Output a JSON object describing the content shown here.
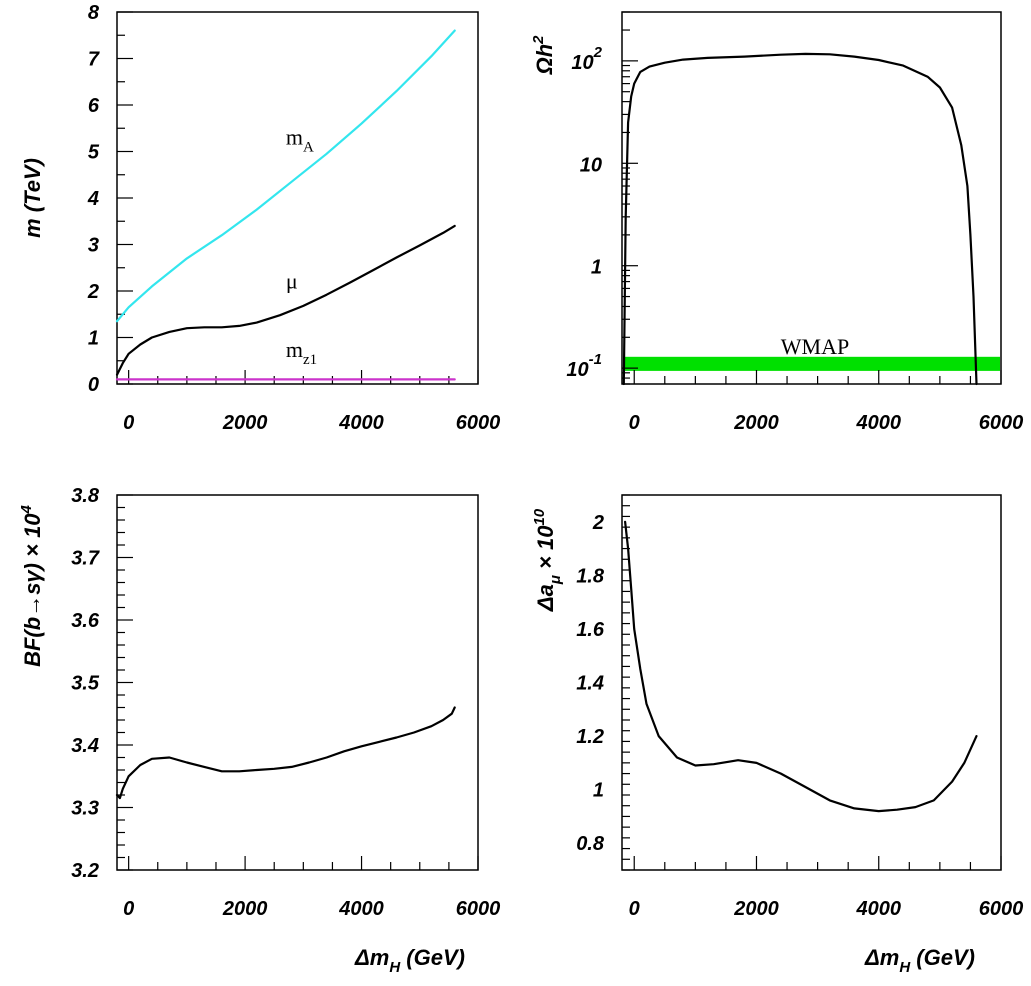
{
  "colors": {
    "mA": "#33e6ee",
    "mu": "#000000",
    "mz1": "#cc33cc",
    "omega": "#000000",
    "wmap_band": "#00e000",
    "bsg": "#000000",
    "amu": "#000000"
  },
  "chart_data": [
    {
      "type": "line",
      "id": "masses",
      "ylabel": "m (TeV)",
      "xlabel": "",
      "xlim": [
        -200,
        6000
      ],
      "ylim": [
        0,
        8
      ],
      "x_ticks": [
        0,
        2000,
        4000,
        6000
      ],
      "x_tick_labels": [
        "0",
        "2000",
        "4000",
        "6000"
      ],
      "y_ticks": [
        0,
        1,
        2,
        3,
        4,
        5,
        6,
        7,
        8
      ],
      "y_tick_labels": [
        "0",
        "1",
        "2",
        "3",
        "4",
        "5",
        "6",
        "7",
        "8"
      ],
      "series": [
        {
          "name": "m_A",
          "label_main": "m",
          "label_sub": "A",
          "label_at": [
            2700,
            5.15
          ],
          "x": [
            -200,
            0,
            400,
            1000,
            1600,
            2200,
            2800,
            3400,
            4000,
            4600,
            5200,
            5600
          ],
          "values": [
            1.35,
            1.65,
            2.1,
            2.7,
            3.2,
            3.75,
            4.35,
            4.95,
            5.6,
            6.3,
            7.05,
            7.6
          ]
        },
        {
          "name": "mu",
          "label_main": "μ",
          "label_sub": "",
          "label_at": [
            2700,
            2.05
          ],
          "x": [
            -200,
            -100,
            0,
            200,
            400,
            700,
            1000,
            1300,
            1600,
            1900,
            2200,
            2600,
            3000,
            3400,
            3800,
            4200,
            4600,
            5000,
            5400,
            5600
          ],
          "values": [
            0.2,
            0.45,
            0.65,
            0.85,
            1.0,
            1.12,
            1.2,
            1.22,
            1.22,
            1.25,
            1.32,
            1.48,
            1.68,
            1.92,
            2.18,
            2.45,
            2.72,
            2.98,
            3.25,
            3.4
          ]
        },
        {
          "name": "m_z1",
          "label_main": "m",
          "label_sub": "z1",
          "label_at": [
            2700,
            0.58
          ],
          "x": [
            -200,
            5600
          ],
          "values": [
            0.1,
            0.1
          ]
        }
      ]
    },
    {
      "type": "line",
      "id": "relic",
      "ylabel": "Ωh²",
      "ylabel_main": "Ωh",
      "ylabel_sup": "2",
      "xlabel": "",
      "yscale": "log",
      "xlim": [
        -200,
        6000
      ],
      "ylim": [
        0.07,
        300
      ],
      "x_ticks": [
        0,
        2000,
        4000,
        6000
      ],
      "x_tick_labels": [
        "0",
        "2000",
        "4000",
        "6000"
      ],
      "y_ticks": [
        0.1,
        1,
        10,
        100
      ],
      "y_tick_labels": [
        {
          "main": "10",
          "sup": "-1"
        },
        {
          "main": "1",
          "sup": ""
        },
        {
          "main": "10",
          "sup": ""
        },
        {
          "main": "10",
          "sup": "2"
        }
      ],
      "band": {
        "name": "WMAP",
        "ymin": 0.094,
        "ymax": 0.129
      },
      "series": [
        {
          "name": "Omega_h2",
          "x": [
            -170,
            -140,
            -100,
            -50,
            0,
            100,
            250,
            500,
            800,
            1200,
            1800,
            2400,
            2800,
            3200,
            3600,
            4000,
            4400,
            4800,
            5000,
            5200,
            5350,
            5450,
            5500,
            5550,
            5600
          ],
          "values": [
            0.07,
            3,
            25,
            45,
            60,
            78,
            88,
            96,
            103,
            107,
            110,
            115,
            117,
            116,
            110,
            102,
            90,
            70,
            55,
            35,
            15,
            6,
            2,
            0.5,
            0.07
          ]
        }
      ]
    },
    {
      "type": "line",
      "id": "bsg",
      "ylabel": "BF(b→sγ)×10⁴",
      "ylabel_main": "BF(b→sγ) × 10",
      "ylabel_sup": "4",
      "xlabel": "Δm_H (GeV)",
      "xlabel_main": "Δm",
      "xlabel_sub": "H",
      "xlabel_rest": " (GeV)",
      "xlim": [
        -200,
        6000
      ],
      "ylim": [
        3.2,
        3.8
      ],
      "x_ticks": [
        0,
        2000,
        4000,
        6000
      ],
      "x_tick_labels": [
        "0",
        "2000",
        "4000",
        "6000"
      ],
      "y_ticks": [
        3.2,
        3.3,
        3.4,
        3.5,
        3.6,
        3.7,
        3.8
      ],
      "y_tick_labels": [
        "3.2",
        "3.3",
        "3.4",
        "3.5",
        "3.6",
        "3.7",
        "3.8"
      ],
      "series": [
        {
          "name": "BF_bsg",
          "x": [
            -200,
            -150,
            -100,
            0,
            200,
            400,
            700,
            1000,
            1300,
            1600,
            1900,
            2200,
            2500,
            2800,
            3100,
            3400,
            3700,
            4000,
            4300,
            4600,
            4900,
            5200,
            5400,
            5550,
            5600
          ],
          "values": [
            3.32,
            3.315,
            3.33,
            3.35,
            3.368,
            3.378,
            3.38,
            3.372,
            3.365,
            3.358,
            3.358,
            3.36,
            3.362,
            3.365,
            3.372,
            3.38,
            3.39,
            3.398,
            3.405,
            3.412,
            3.42,
            3.43,
            3.44,
            3.45,
            3.46
          ]
        }
      ]
    },
    {
      "type": "line",
      "id": "amu",
      "ylabel": "Δa_μ×10¹⁰",
      "ylabel_main": "Δa",
      "ylabel_sub": "μ",
      "ylabel_rest": " × 10",
      "ylabel_sup": "10",
      "xlabel": "Δm_H (GeV)",
      "xlabel_main": "Δm",
      "xlabel_sub": "H",
      "xlabel_rest": " (GeV)",
      "xlim": [
        -200,
        6000
      ],
      "ylim": [
        0.7,
        2.1
      ],
      "x_ticks": [
        0,
        2000,
        4000,
        6000
      ],
      "x_tick_labels": [
        "0",
        "2000",
        "4000",
        "6000"
      ],
      "y_ticks": [
        0.8,
        1,
        1.2,
        1.4,
        1.6,
        1.8,
        2
      ],
      "y_tick_labels": [
        "0.8",
        "1",
        "1.2",
        "1.4",
        "1.6",
        "1.8",
        "2"
      ],
      "series": [
        {
          "name": "Delta_a_mu",
          "x": [
            -150,
            -100,
            -50,
            0,
            100,
            200,
            400,
            700,
            1000,
            1300,
            1700,
            2000,
            2400,
            2800,
            3200,
            3600,
            4000,
            4300,
            4600,
            4900,
            5200,
            5400,
            5600
          ],
          "values": [
            2.0,
            1.9,
            1.75,
            1.6,
            1.45,
            1.32,
            1.2,
            1.12,
            1.09,
            1.095,
            1.11,
            1.1,
            1.06,
            1.01,
            0.96,
            0.93,
            0.92,
            0.925,
            0.935,
            0.96,
            1.03,
            1.1,
            1.2
          ]
        }
      ]
    }
  ]
}
